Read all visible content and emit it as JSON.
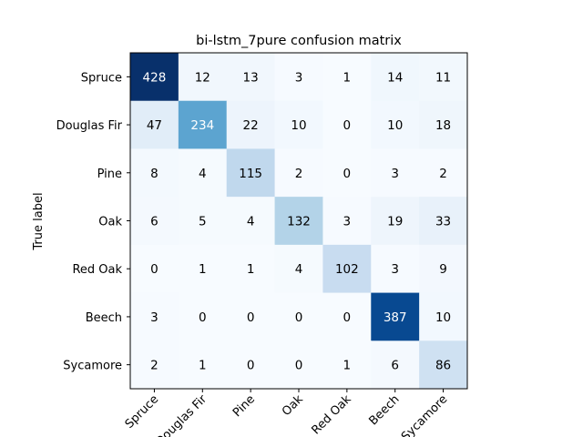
{
  "chart_data": {
    "type": "heatmap",
    "title": "bi-lstm_7pure confusion matrix",
    "ylabel": "True label",
    "xlabel": "",
    "row_labels": [
      "Spruce",
      "Douglas Fir",
      "Pine",
      "Oak",
      "Red Oak",
      "Beech",
      "Sycamore"
    ],
    "col_labels": [
      "Spruce",
      "Douglas Fir",
      "Pine",
      "Oak",
      "Red Oak",
      "Beech",
      "Sycamore"
    ],
    "values": [
      [
        428,
        12,
        13,
        3,
        1,
        14,
        11
      ],
      [
        47,
        234,
        22,
        10,
        0,
        10,
        18
      ],
      [
        8,
        4,
        115,
        2,
        0,
        3,
        2
      ],
      [
        6,
        5,
        4,
        132,
        3,
        19,
        33
      ],
      [
        0,
        1,
        1,
        4,
        102,
        3,
        9
      ],
      [
        3,
        0,
        0,
        0,
        0,
        387,
        10
      ],
      [
        2,
        1,
        0,
        0,
        1,
        6,
        86
      ]
    ],
    "colormap": "Blues",
    "grid": false
  }
}
